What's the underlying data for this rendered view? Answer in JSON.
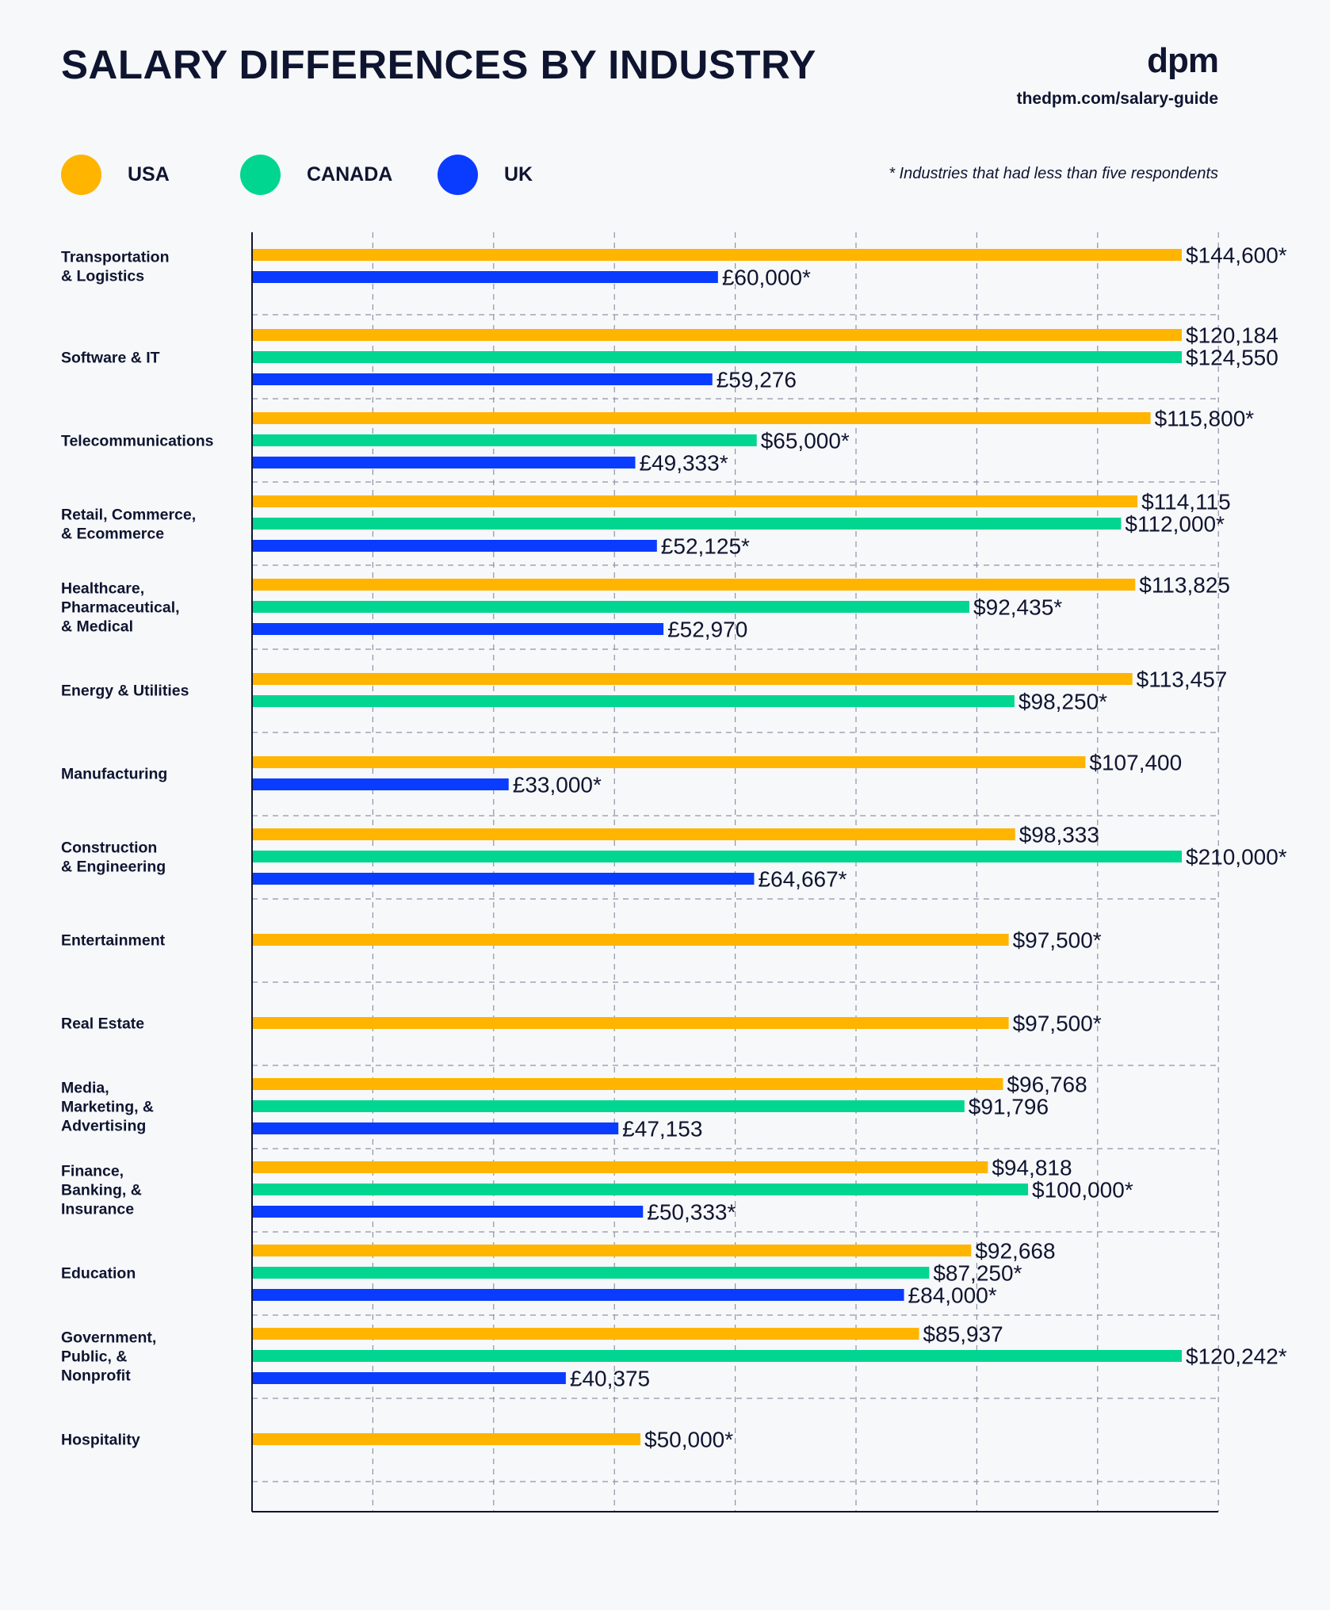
{
  "header": {
    "title": "SALARY DIFFERENCES BY INDUSTRY",
    "logo": "dpm",
    "url": "thedpm.com/salary-guide"
  },
  "legend": {
    "items": [
      {
        "label": "USA",
        "color": "#ffb400"
      },
      {
        "label": "CANADA",
        "color": "#00d68f"
      },
      {
        "label": "UK",
        "color": "#0a3cff"
      }
    ],
    "note": "* Industries that had less than five respondents"
  },
  "chart_data": {
    "type": "bar",
    "orientation": "horizontal",
    "grid": true,
    "legend_placement": "top-left",
    "xlim": [
      0,
      160000
    ],
    "series_names": [
      "USA",
      "CANADA",
      "UK"
    ],
    "categories": [
      {
        "label": [
          "Transportation",
          "& Logistics"
        ],
        "bars": [
          {
            "series": "USA",
            "value": 144600,
            "label": "$144,600*"
          },
          {
            "series": "UK",
            "value": 60000,
            "label": "£60,000*"
          }
        ]
      },
      {
        "label": [
          "Software & IT"
        ],
        "bars": [
          {
            "series": "USA",
            "value": 120184,
            "label": "$120,184"
          },
          {
            "series": "CANADA",
            "value": 124550,
            "label": "$124,550"
          },
          {
            "series": "UK",
            "value": 59276,
            "label": "£59,276"
          }
        ]
      },
      {
        "label": [
          "Telecommunications"
        ],
        "bars": [
          {
            "series": "USA",
            "value": 115800,
            "label": "$115,800*"
          },
          {
            "series": "CANADA",
            "value": 65000,
            "label": "$65,000*"
          },
          {
            "series": "UK",
            "value": 49333,
            "label": "£49,333*"
          }
        ]
      },
      {
        "label": [
          "Retail, Commerce,",
          "& Ecommerce"
        ],
        "bars": [
          {
            "series": "USA",
            "value": 114115,
            "label": "$114,115"
          },
          {
            "series": "CANADA",
            "value": 112000,
            "label": "$112,000*"
          },
          {
            "series": "UK",
            "value": 52125,
            "label": "£52,125*"
          }
        ]
      },
      {
        "label": [
          "Healthcare,",
          "Pharmaceutical,",
          "& Medical"
        ],
        "bars": [
          {
            "series": "USA",
            "value": 113825,
            "label": "$113,825"
          },
          {
            "series": "CANADA",
            "value": 92435,
            "label": "$92,435*"
          },
          {
            "series": "UK",
            "value": 52970,
            "label": "£52,970"
          }
        ]
      },
      {
        "label": [
          "Energy & Utilities"
        ],
        "bars": [
          {
            "series": "USA",
            "value": 113457,
            "label": "$113,457"
          },
          {
            "series": "CANADA",
            "value": 98250,
            "label": "$98,250*"
          }
        ]
      },
      {
        "label": [
          "Manufacturing"
        ],
        "bars": [
          {
            "series": "USA",
            "value": 107400,
            "label": "$107,400"
          },
          {
            "series": "UK",
            "value": 33000,
            "label": "£33,000*"
          }
        ]
      },
      {
        "label": [
          "Construction",
          "& Engineering"
        ],
        "bars": [
          {
            "series": "USA",
            "value": 98333,
            "label": "$98,333"
          },
          {
            "series": "CANADA",
            "value": 210000,
            "label": "$210,000*"
          },
          {
            "series": "UK",
            "value": 64667,
            "label": "£64,667*"
          }
        ]
      },
      {
        "label": [
          "Entertainment"
        ],
        "bars": [
          {
            "series": "USA",
            "value": 97500,
            "label": "$97,500*"
          }
        ]
      },
      {
        "label": [
          "Real Estate"
        ],
        "bars": [
          {
            "series": "USA",
            "value": 97500,
            "label": "$97,500*"
          }
        ]
      },
      {
        "label": [
          "Media,",
          "Marketing, &",
          "Advertising"
        ],
        "bars": [
          {
            "series": "USA",
            "value": 96768,
            "label": "$96,768"
          },
          {
            "series": "CANADA",
            "value": 91796,
            "label": "$91,796"
          },
          {
            "series": "UK",
            "value": 47153,
            "label": "£47,153"
          }
        ]
      },
      {
        "label": [
          "Finance,",
          "Banking, &",
          "Insurance"
        ],
        "bars": [
          {
            "series": "USA",
            "value": 94818,
            "label": "$94,818"
          },
          {
            "series": "CANADA",
            "value": 100000,
            "label": "$100,000*"
          },
          {
            "series": "UK",
            "value": 50333,
            "label": "£50,333*"
          }
        ]
      },
      {
        "label": [
          "Education"
        ],
        "bars": [
          {
            "series": "USA",
            "value": 92668,
            "label": "$92,668"
          },
          {
            "series": "CANADA",
            "value": 87250,
            "label": "$87,250*"
          },
          {
            "series": "UK",
            "value": 84000,
            "label": "£84,000*"
          }
        ]
      },
      {
        "label": [
          "Government,",
          "Public, &",
          "Nonprofit"
        ],
        "bars": [
          {
            "series": "USA",
            "value": 85937,
            "label": "$85,937"
          },
          {
            "series": "CANADA",
            "value": 120242,
            "label": "$120,242*"
          },
          {
            "series": "UK",
            "value": 40375,
            "label": "£40,375"
          }
        ]
      },
      {
        "label": [
          "Hospitality"
        ],
        "bars": [
          {
            "series": "USA",
            "value": 50000,
            "label": "$50,000*"
          }
        ]
      }
    ]
  }
}
